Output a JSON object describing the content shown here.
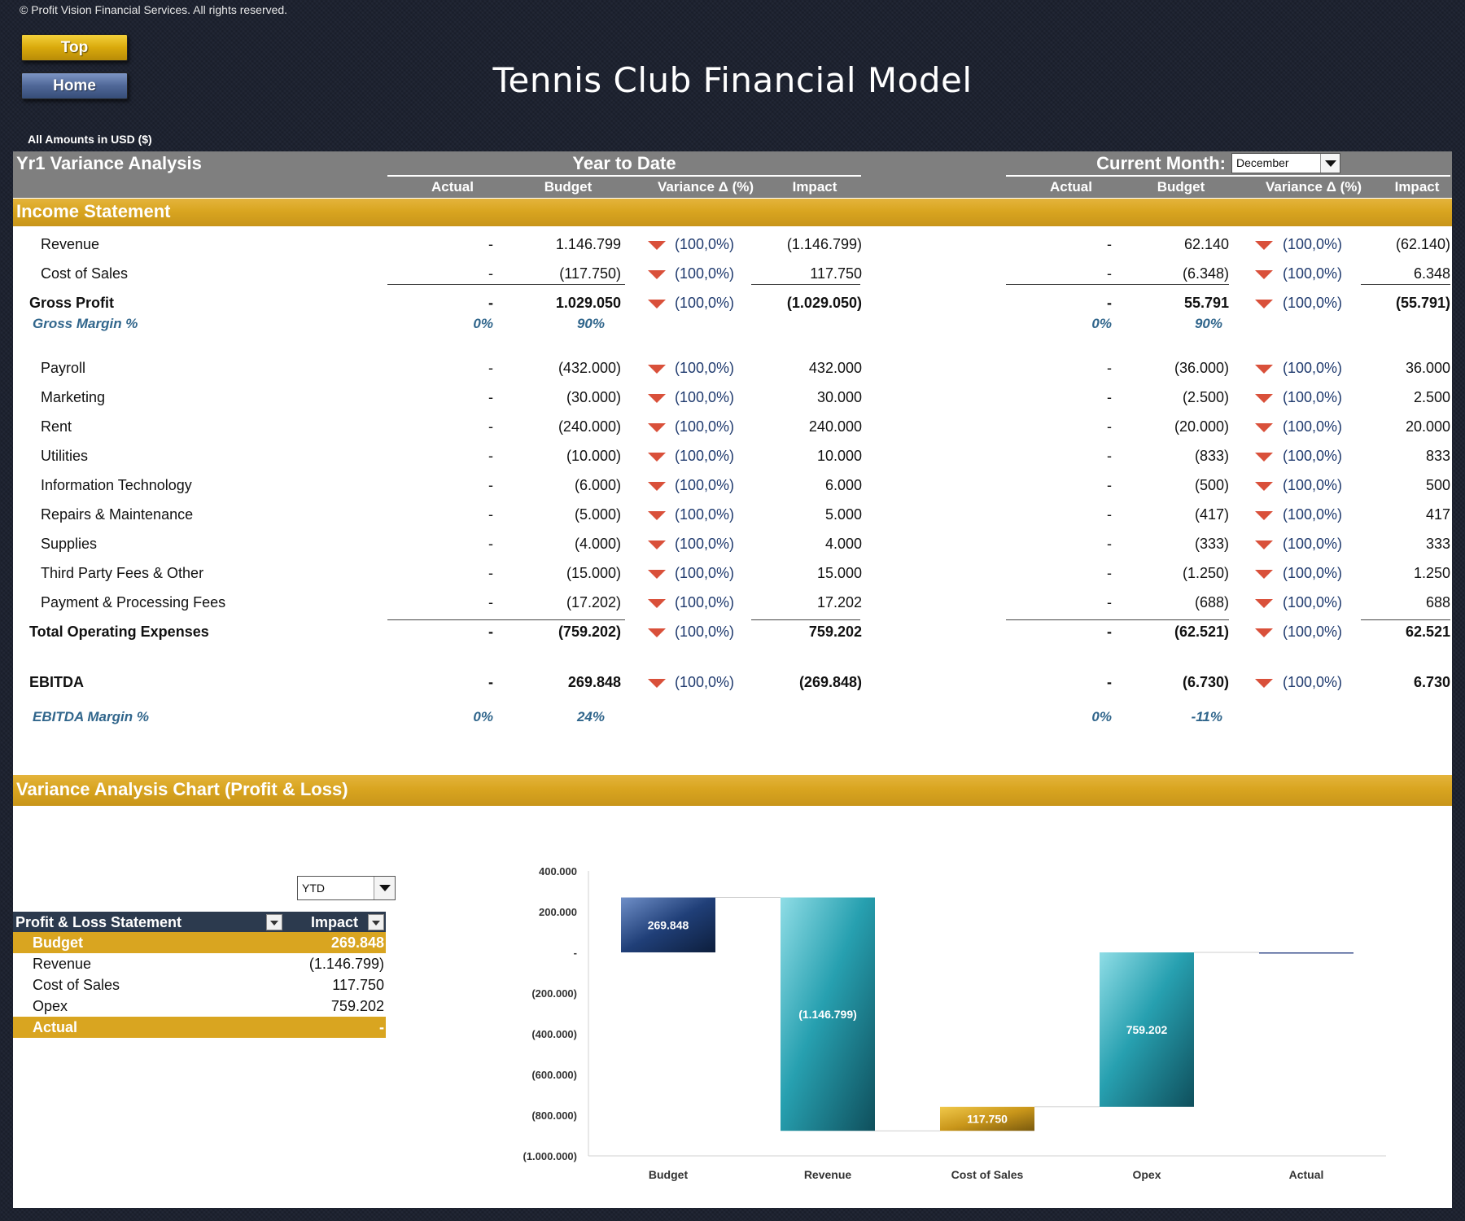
{
  "copyright": "© Profit Vision Financial Services. All rights reserved.",
  "nav": {
    "top_label": "Top",
    "home_label": "Home"
  },
  "title": "Tennis Club Financial Model",
  "amounts_note": "All Amounts in  USD ($)",
  "header": {
    "title": "Yr1 Variance Analysis",
    "ytd_title": "Year to Date",
    "month_title": "Current Month:",
    "month_selected": "December",
    "cols": [
      "Actual",
      "Budget",
      "Variance Δ  (%)",
      "Impact"
    ]
  },
  "income_section": "Income Statement",
  "rows": [
    {
      "label": "Revenue",
      "bold": false,
      "ytd": {
        "actual": "-",
        "budget": "1.146.799",
        "var": "(100,0%)",
        "impact": "(1.146.799)"
      },
      "cm": {
        "actual": "-",
        "budget": "62.140",
        "var": "(100,0%)",
        "impact": "(62.140)"
      }
    },
    {
      "label": "Cost of Sales",
      "bold": false,
      "ytd": {
        "actual": "-",
        "budget": "(117.750)",
        "var": "(100,0%)",
        "impact": "117.750"
      },
      "cm": {
        "actual": "-",
        "budget": "(6.348)",
        "var": "(100,0%)",
        "impact": "6.348"
      }
    },
    {
      "label": "Gross Profit",
      "bold": true,
      "ytd": {
        "actual": "-",
        "budget": "1.029.050",
        "var": "(100,0%)",
        "impact": "(1.029.050)"
      },
      "cm": {
        "actual": "-",
        "budget": "55.791",
        "var": "(100,0%)",
        "impact": "(55.791)"
      }
    },
    {
      "label": "Payroll",
      "bold": false,
      "ytd": {
        "actual": "-",
        "budget": "(432.000)",
        "var": "(100,0%)",
        "impact": "432.000"
      },
      "cm": {
        "actual": "-",
        "budget": "(36.000)",
        "var": "(100,0%)",
        "impact": "36.000"
      }
    },
    {
      "label": "Marketing",
      "bold": false,
      "ytd": {
        "actual": "-",
        "budget": "(30.000)",
        "var": "(100,0%)",
        "impact": "30.000"
      },
      "cm": {
        "actual": "-",
        "budget": "(2.500)",
        "var": "(100,0%)",
        "impact": "2.500"
      }
    },
    {
      "label": "Rent",
      "bold": false,
      "ytd": {
        "actual": "-",
        "budget": "(240.000)",
        "var": "(100,0%)",
        "impact": "240.000"
      },
      "cm": {
        "actual": "-",
        "budget": "(20.000)",
        "var": "(100,0%)",
        "impact": "20.000"
      }
    },
    {
      "label": "Utilities",
      "bold": false,
      "ytd": {
        "actual": "-",
        "budget": "(10.000)",
        "var": "(100,0%)",
        "impact": "10.000"
      },
      "cm": {
        "actual": "-",
        "budget": "(833)",
        "var": "(100,0%)",
        "impact": "833"
      }
    },
    {
      "label": "Information Technology",
      "bold": false,
      "ytd": {
        "actual": "-",
        "budget": "(6.000)",
        "var": "(100,0%)",
        "impact": "6.000"
      },
      "cm": {
        "actual": "-",
        "budget": "(500)",
        "var": "(100,0%)",
        "impact": "500"
      }
    },
    {
      "label": "Repairs & Maintenance",
      "bold": false,
      "ytd": {
        "actual": "-",
        "budget": "(5.000)",
        "var": "(100,0%)",
        "impact": "5.000"
      },
      "cm": {
        "actual": "-",
        "budget": "(417)",
        "var": "(100,0%)",
        "impact": "417"
      }
    },
    {
      "label": "Supplies",
      "bold": false,
      "ytd": {
        "actual": "-",
        "budget": "(4.000)",
        "var": "(100,0%)",
        "impact": "4.000"
      },
      "cm": {
        "actual": "-",
        "budget": "(333)",
        "var": "(100,0%)",
        "impact": "333"
      }
    },
    {
      "label": "Third Party Fees & Other",
      "bold": false,
      "ytd": {
        "actual": "-",
        "budget": "(15.000)",
        "var": "(100,0%)",
        "impact": "15.000"
      },
      "cm": {
        "actual": "-",
        "budget": "(1.250)",
        "var": "(100,0%)",
        "impact": "1.250"
      }
    },
    {
      "label": "Payment & Processing Fees",
      "bold": false,
      "ytd": {
        "actual": "-",
        "budget": "(17.202)",
        "var": "(100,0%)",
        "impact": "17.202"
      },
      "cm": {
        "actual": "-",
        "budget": "(688)",
        "var": "(100,0%)",
        "impact": "688"
      }
    },
    {
      "label": "Total Operating Expenses",
      "bold": true,
      "ytd": {
        "actual": "-",
        "budget": "(759.202)",
        "var": "(100,0%)",
        "impact": "759.202"
      },
      "cm": {
        "actual": "-",
        "budget": "(62.521)",
        "var": "(100,0%)",
        "impact": "62.521"
      }
    },
    {
      "label": "EBITDA",
      "bold": true,
      "ytd": {
        "actual": "-",
        "budget": "269.848",
        "var": "(100,0%)",
        "impact": "(269.848)"
      },
      "cm": {
        "actual": "-",
        "budget": "(6.730)",
        "var": "(100,0%)",
        "impact": "6.730"
      }
    }
  ],
  "gross_margin": {
    "label": "Gross Margin %",
    "ytd_actual": "0%",
    "ytd_budget": "90%",
    "cm_actual": "0%",
    "cm_budget": "90%"
  },
  "ebitda_margin": {
    "label": "EBITDA Margin %",
    "ytd_actual": "0%",
    "ytd_budget": "24%",
    "cm_actual": "0%",
    "cm_budget": "-11%"
  },
  "chart_section": "Variance Analysis Chart (Profit & Loss)",
  "pl_select": "YTD",
  "pl_table": {
    "headers": [
      "Profit & Loss Statement",
      "Impact"
    ],
    "rows": [
      {
        "label": "Budget",
        "value": "269.848",
        "highlight": true
      },
      {
        "label": "Revenue",
        "value": "(1.146.799)",
        "highlight": false
      },
      {
        "label": "Cost of Sales",
        "value": "117.750",
        "highlight": false
      },
      {
        "label": "Opex",
        "value": "759.202",
        "highlight": false
      },
      {
        "label": "Actual",
        "value": "-",
        "highlight": true
      }
    ]
  },
  "colors": {
    "gold": "#d9a520",
    "navy": "#1f3a6e",
    "teal": "#1e8f9e",
    "down_arrow": "#d9503a",
    "margin_text": "#31668c"
  },
  "chart_data": {
    "type": "waterfall",
    "categories": [
      "Budget",
      "Revenue",
      "Cost of Sales",
      "Opex",
      "Actual"
    ],
    "values": [
      269848,
      -1146799,
      117750,
      759202,
      0
    ],
    "bar_labels": [
      "269.848",
      "(1.146.799)",
      "117.750",
      "759.202",
      ""
    ],
    "ytick_labels": [
      "400.000",
      "200.000",
      "-",
      "(200.000)",
      "(400.000)",
      "(600.000)",
      "(800.000)",
      "(1.000.000)"
    ],
    "ylim": [
      -1000000,
      400000
    ],
    "grid": false
  }
}
